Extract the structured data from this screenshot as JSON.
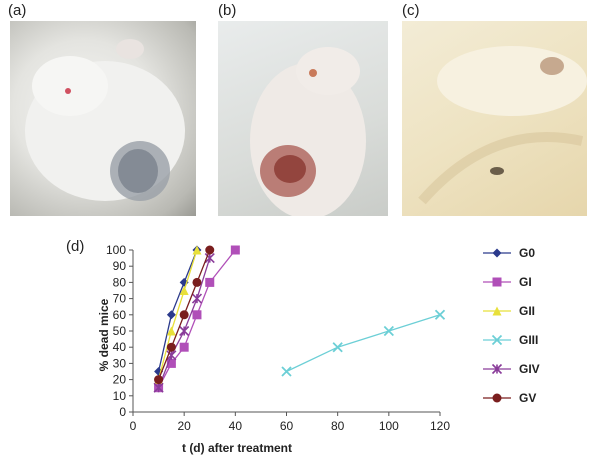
{
  "panels": {
    "a": "(a)",
    "b": "(b)",
    "c": "(c)",
    "d": "(d)"
  },
  "chart_data": {
    "type": "line",
    "xlabel": "t (d) after treatment",
    "ylabel": "% dead mice",
    "xlim": [
      0,
      120
    ],
    "ylim": [
      0,
      100
    ],
    "xticks": [
      0,
      20,
      40,
      60,
      80,
      100,
      120
    ],
    "yticks": [
      0,
      10,
      20,
      30,
      40,
      50,
      60,
      70,
      80,
      90,
      100
    ],
    "grid": false,
    "legend_position": "right",
    "series": [
      {
        "name": "G0",
        "color": "#2B3A8C",
        "marker": "diamond",
        "x": [
          10,
          15,
          20,
          25
        ],
        "y": [
          25,
          60,
          80,
          100
        ]
      },
      {
        "name": "GI",
        "color": "#B04FB8",
        "marker": "square",
        "x": [
          10,
          15,
          20,
          25,
          30,
          40
        ],
        "y": [
          15,
          30,
          40,
          60,
          80,
          100
        ]
      },
      {
        "name": "GII",
        "color": "#E8E03A",
        "marker": "triangle",
        "x": [
          10,
          15,
          20,
          25
        ],
        "y": [
          20,
          50,
          75,
          100
        ]
      },
      {
        "name": "GIII",
        "color": "#6CCFD6",
        "marker": "x",
        "x": [
          60,
          80,
          100,
          120
        ],
        "y": [
          25,
          40,
          50,
          60
        ]
      },
      {
        "name": "GIV",
        "color": "#8A3C9A",
        "marker": "star",
        "x": [
          10,
          15,
          20,
          25,
          30
        ],
        "y": [
          15,
          35,
          50,
          70,
          95
        ]
      },
      {
        "name": "GV",
        "color": "#7A1E1E",
        "marker": "circle",
        "x": [
          10,
          15,
          20,
          25,
          30
        ],
        "y": [
          20,
          40,
          60,
          80,
          100
        ]
      }
    ]
  }
}
